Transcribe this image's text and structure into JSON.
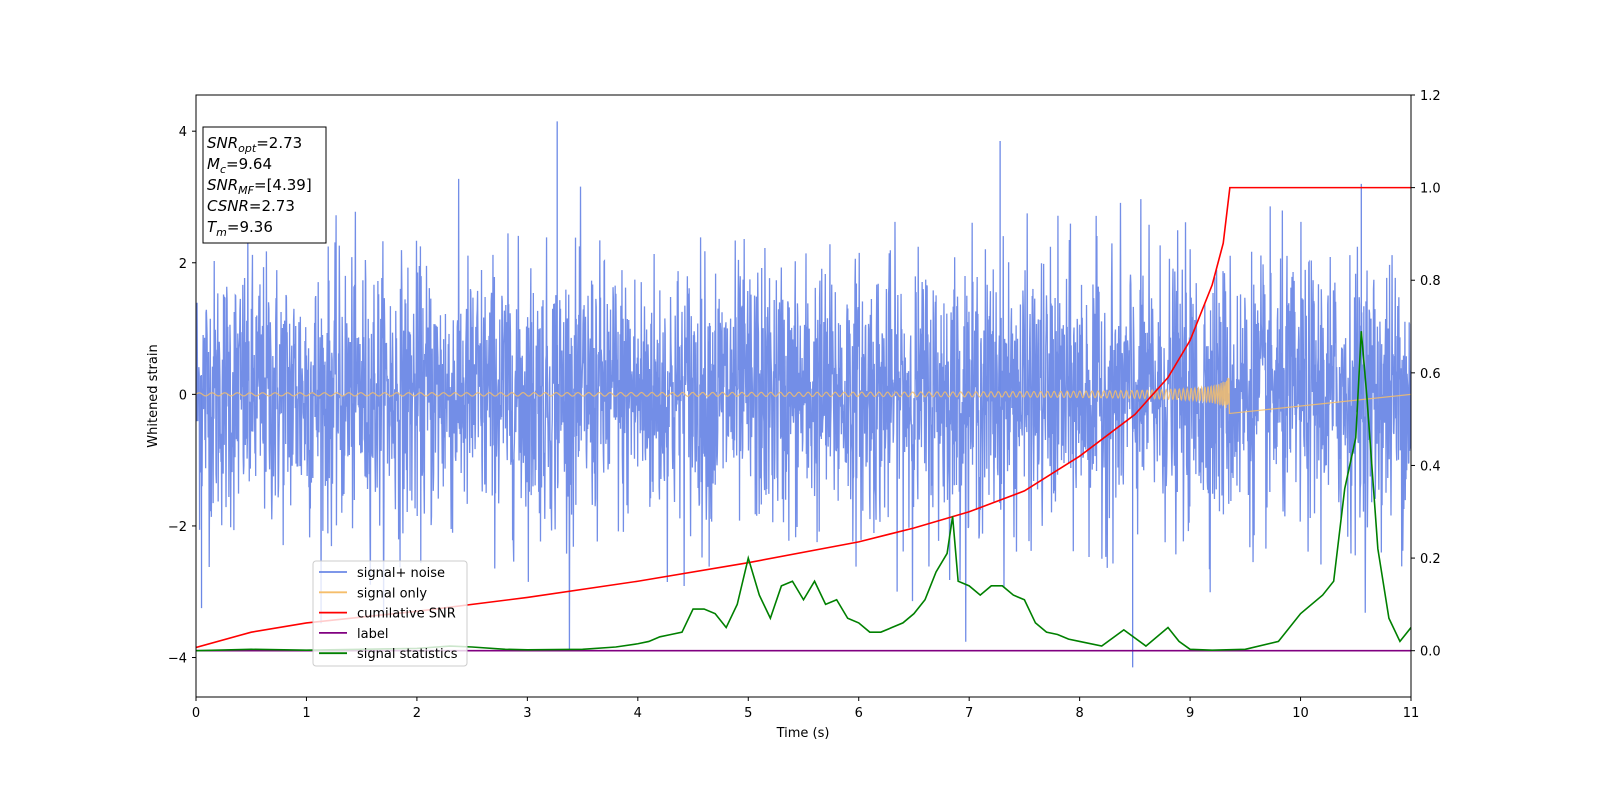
{
  "chart_data": {
    "type": "line",
    "xlabel": "Time (s)",
    "ylabel": "Whitened strain",
    "xlim": [
      0,
      11
    ],
    "ylim_left": [
      -4.6,
      4.55
    ],
    "ylim_right": [
      -0.1,
      1.2
    ],
    "xticks": [
      0,
      1,
      2,
      3,
      4,
      5,
      6,
      7,
      8,
      9,
      10,
      11
    ],
    "yticks_left": [
      4,
      2,
      0,
      -2,
      -4
    ],
    "yticks_right": [
      "1.2",
      "1.0",
      "0.8",
      "0.6",
      "0.4",
      "0.2",
      "0.0"
    ],
    "grid": false,
    "legend_position": "lower-left",
    "info_box": [
      {
        "label": "SNR",
        "sub": "opt",
        "value": "=2.73"
      },
      {
        "label": "M",
        "sub": "c",
        "value": "=9.64"
      },
      {
        "label": "SNR",
        "sub": "MF",
        "value": "=[4.39]"
      },
      {
        "label": "CSNR",
        "sub": "",
        "value": "=2.73"
      },
      {
        "label": "T",
        "sub": "m",
        "value": "=9.36"
      }
    ],
    "series": [
      {
        "name": "signal+ noise",
        "color": "#6b88e6",
        "axis": "left",
        "description": "whitened noise with amplitude about 1, x from 0 to 11",
        "x_range": [
          0,
          11
        ],
        "approx_std": 1.0,
        "peak_points": [
          {
            "x": 3.27,
            "y": 4.15
          },
          {
            "x": 7.28,
            "y": 3.85
          },
          {
            "x": 8.48,
            "y": -4.15
          },
          {
            "x": 0.05,
            "y": -3.25
          },
          {
            "x": 10.55,
            "y": 3.2
          }
        ]
      },
      {
        "name": "signal only",
        "color": "#f5be6b",
        "axis": "left",
        "description": "chirp rising in amplitude, ends at merger time",
        "x_range": [
          0,
          9.36
        ],
        "amplitude_at_end": 0.45
      },
      {
        "name": "cumilative SNR",
        "color": "#ff0000",
        "axis": "right",
        "x": [
          0,
          0.5,
          1,
          2,
          3,
          4,
          5,
          6,
          6.5,
          7,
          7.5,
          8,
          8.5,
          8.8,
          9.0,
          9.2,
          9.3,
          9.36,
          11
        ],
        "y": [
          0.007,
          0.04,
          0.06,
          0.085,
          0.115,
          0.15,
          0.19,
          0.235,
          0.265,
          0.3,
          0.345,
          0.42,
          0.51,
          0.59,
          0.67,
          0.79,
          0.88,
          1.0,
          1.0
        ]
      },
      {
        "name": "label",
        "color": "#800080",
        "axis": "right",
        "x": [
          0,
          11
        ],
        "y": [
          0.0,
          0.0
        ]
      },
      {
        "name": "signal statistics",
        "color": "#008000",
        "axis": "right",
        "x": [
          0,
          0.5,
          1,
          1.5,
          2,
          2.3,
          2.5,
          2.8,
          3,
          3.5,
          3.8,
          4,
          4.1,
          4.2,
          4.3,
          4.4,
          4.5,
          4.6,
          4.7,
          4.8,
          4.9,
          5.0,
          5.1,
          5.2,
          5.3,
          5.4,
          5.5,
          5.6,
          5.7,
          5.8,
          5.9,
          6.0,
          6.1,
          6.2,
          6.3,
          6.4,
          6.5,
          6.6,
          6.7,
          6.8,
          6.85,
          6.9,
          7.0,
          7.1,
          7.2,
          7.3,
          7.4,
          7.5,
          7.6,
          7.7,
          7.8,
          7.9,
          8.0,
          8.2,
          8.4,
          8.6,
          8.8,
          8.9,
          9.0,
          9.2,
          9.5,
          9.8,
          10.0,
          10.2,
          10.3,
          10.4,
          10.5,
          10.55,
          10.6,
          10.7,
          10.8,
          10.9,
          11.0
        ],
        "y": [
          0.0,
          0.003,
          0.001,
          0.003,
          0.005,
          0.01,
          0.008,
          0.003,
          0.002,
          0.003,
          0.008,
          0.015,
          0.02,
          0.03,
          0.035,
          0.04,
          0.09,
          0.09,
          0.08,
          0.05,
          0.1,
          0.2,
          0.12,
          0.07,
          0.14,
          0.15,
          0.11,
          0.15,
          0.1,
          0.11,
          0.07,
          0.06,
          0.04,
          0.04,
          0.05,
          0.06,
          0.08,
          0.11,
          0.17,
          0.21,
          0.29,
          0.15,
          0.14,
          0.12,
          0.14,
          0.14,
          0.12,
          0.11,
          0.06,
          0.04,
          0.035,
          0.025,
          0.02,
          0.01,
          0.045,
          0.01,
          0.05,
          0.02,
          0.003,
          0.001,
          0.003,
          0.02,
          0.08,
          0.12,
          0.15,
          0.35,
          0.46,
          0.69,
          0.55,
          0.22,
          0.07,
          0.02,
          0.05
        ]
      }
    ]
  }
}
